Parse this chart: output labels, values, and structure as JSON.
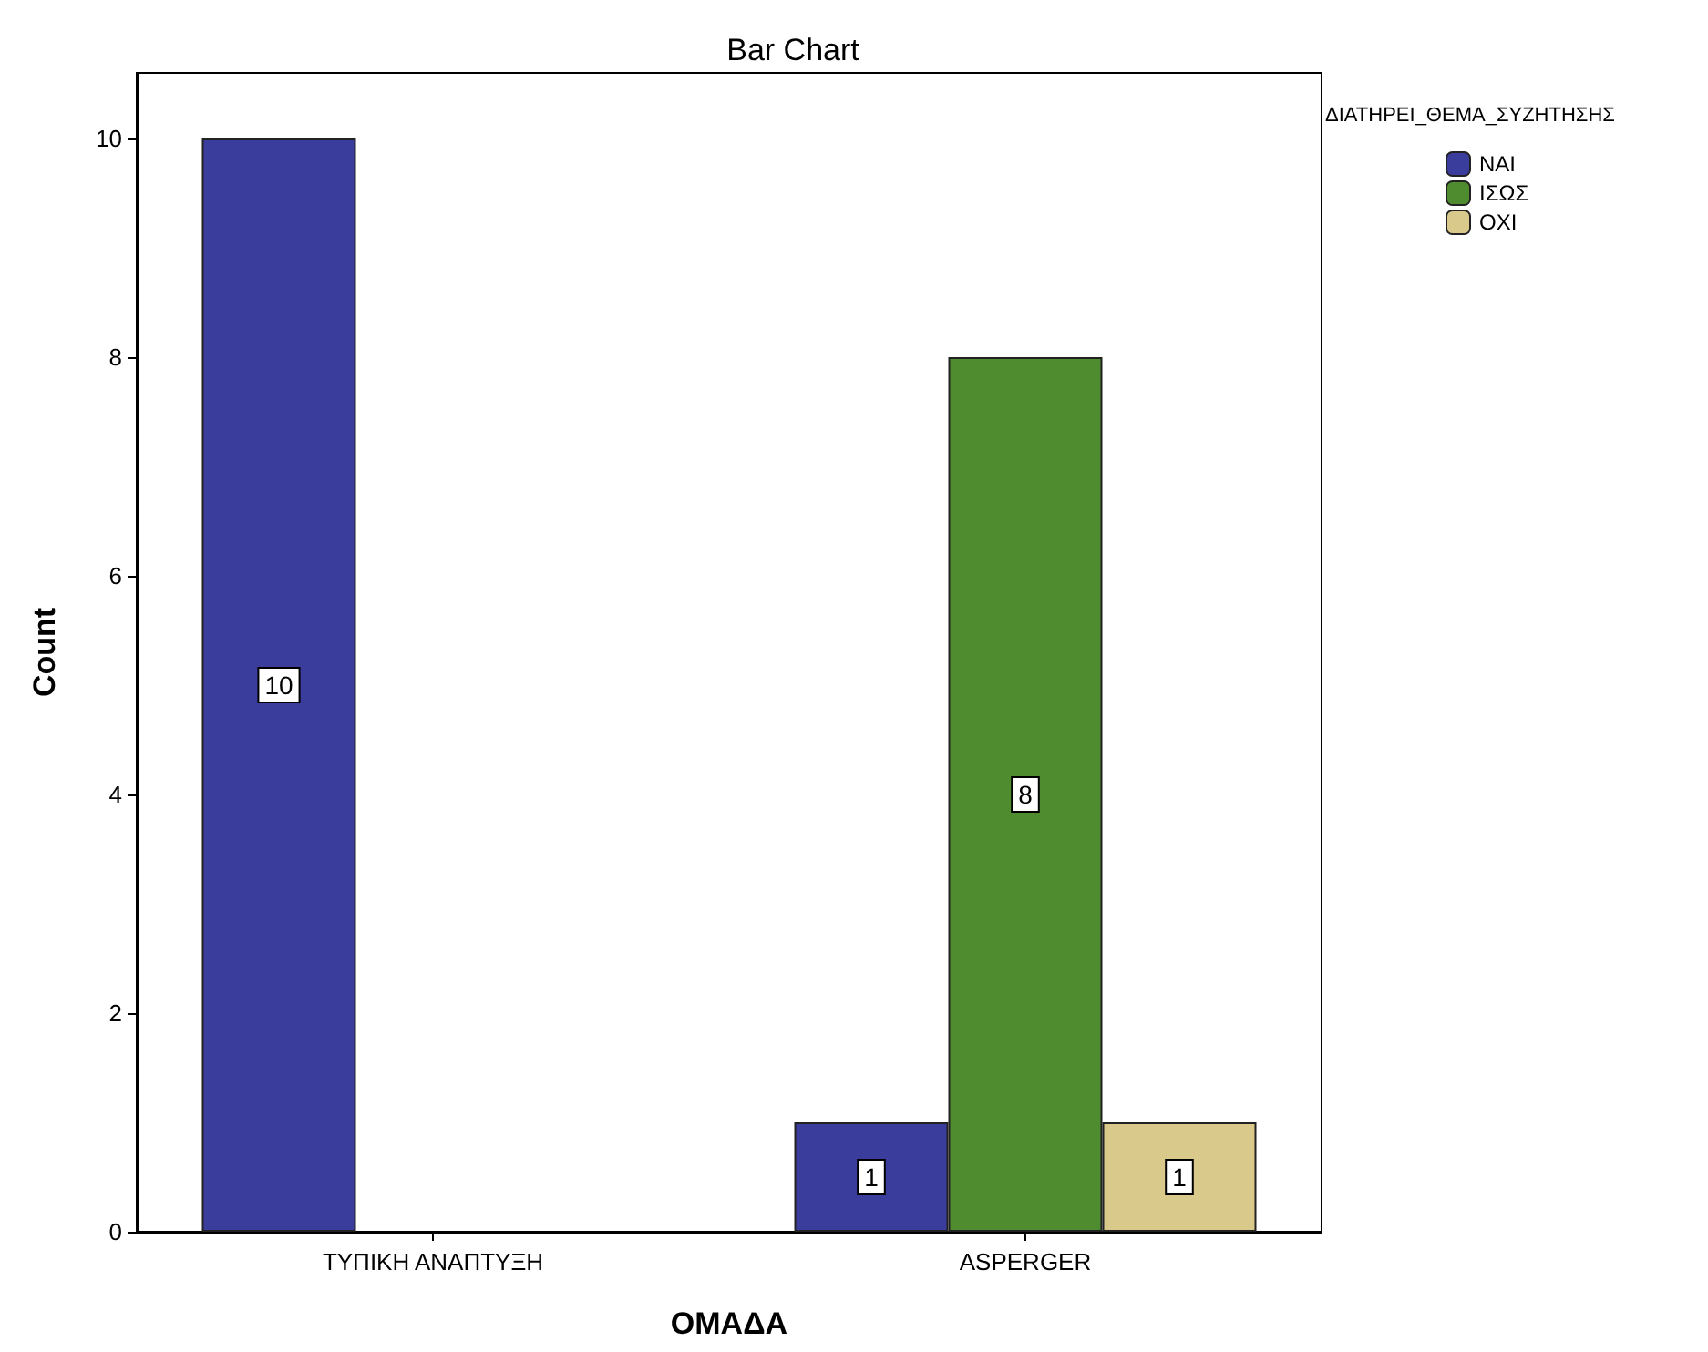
{
  "chart_data": {
    "type": "bar",
    "title": "Bar Chart",
    "xlabel": "ΟΜΑΔΑ",
    "ylabel": "Count",
    "legend_title": "ΔΙΑΤΗΡΕΙ_ΘΕΜΑ_ΣΥΖΗΤΗΣΗΣ",
    "categories": [
      "ΤΥΠΙΚΗ ΑΝΑΠΤΥΞΗ",
      "ASPERGER"
    ],
    "series": [
      {
        "name": "ΝΑΙ",
        "color": "#3a3d9c",
        "values": [
          10,
          1
        ]
      },
      {
        "name": "ΙΣΩΣ",
        "color": "#4f8c2f",
        "values": [
          null,
          8
        ]
      },
      {
        "name": "ΟΧΙ",
        "color": "#d9c98b",
        "values": [
          null,
          1
        ]
      }
    ],
    "ylim": [
      0,
      10.6
    ],
    "yticks": [
      0,
      2,
      4,
      6,
      8,
      10
    ],
    "grid": false,
    "legend": "top right",
    "data_labels": true
  }
}
